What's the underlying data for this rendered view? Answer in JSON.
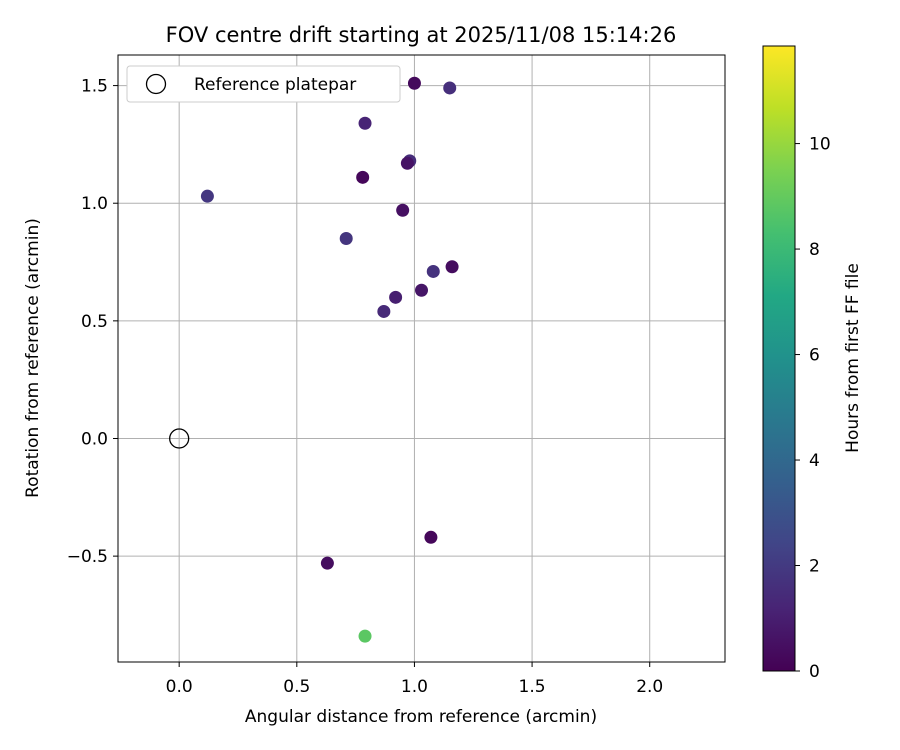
{
  "chart_data": {
    "type": "scatter",
    "title": "FOV centre drift starting at 2025/11/08 15:14:26",
    "xlabel": "Angular distance from reference (arcmin)",
    "ylabel": "Rotation from reference (arcmin)",
    "xlim": [
      -0.26,
      2.32
    ],
    "ylim": [
      -0.95,
      1.63
    ],
    "xticks": [
      0.0,
      0.5,
      1.0,
      1.5,
      2.0
    ],
    "xtick_labels": [
      "0.0",
      "0.5",
      "1.0",
      "1.5",
      "2.0"
    ],
    "yticks": [
      -0.5,
      0.0,
      0.5,
      1.0,
      1.5
    ],
    "ytick_labels": [
      "−0.5",
      "0.0",
      "0.5",
      "1.0",
      "1.5"
    ],
    "grid": true,
    "legend": {
      "position": "top-left",
      "label": "Reference platepar"
    },
    "reference_point": {
      "x": 0.0,
      "y": 0.0
    },
    "colorbar": {
      "label": "Hours from first FF file",
      "range": [
        0,
        11.85
      ],
      "ticks": [
        0,
        2,
        4,
        6,
        8,
        10
      ],
      "tick_labels": [
        "0",
        "2",
        "4",
        "6",
        "8",
        "10"
      ],
      "colormap": [
        "#440154",
        "#482475",
        "#414487",
        "#355f8d",
        "#2a788e",
        "#21918c",
        "#22a884",
        "#44bf70",
        "#7ad151",
        "#bddf26",
        "#fde725"
      ]
    },
    "points": [
      {
        "x": 1.0,
        "y": 1.51,
        "hours": 0.3
      },
      {
        "x": 1.15,
        "y": 1.49,
        "hours": 1.6
      },
      {
        "x": 0.79,
        "y": 1.34,
        "hours": 1.2
      },
      {
        "x": 0.98,
        "y": 1.18,
        "hours": 1.5
      },
      {
        "x": 0.97,
        "y": 1.17,
        "hours": 0.6
      },
      {
        "x": 0.78,
        "y": 1.11,
        "hours": 0.2
      },
      {
        "x": 0.12,
        "y": 1.03,
        "hours": 1.9
      },
      {
        "x": 0.95,
        "y": 0.97,
        "hours": 0.5
      },
      {
        "x": 0.71,
        "y": 0.85,
        "hours": 1.8
      },
      {
        "x": 1.16,
        "y": 0.73,
        "hours": 0.4
      },
      {
        "x": 1.08,
        "y": 0.71,
        "hours": 1.7
      },
      {
        "x": 1.03,
        "y": 0.63,
        "hours": 0.7
      },
      {
        "x": 0.92,
        "y": 0.6,
        "hours": 1.0
      },
      {
        "x": 0.87,
        "y": 0.54,
        "hours": 1.4
      },
      {
        "x": 1.07,
        "y": -0.42,
        "hours": 0.2
      },
      {
        "x": 0.63,
        "y": -0.53,
        "hours": 0.4
      },
      {
        "x": 0.79,
        "y": -0.84,
        "hours": 8.8
      }
    ]
  }
}
